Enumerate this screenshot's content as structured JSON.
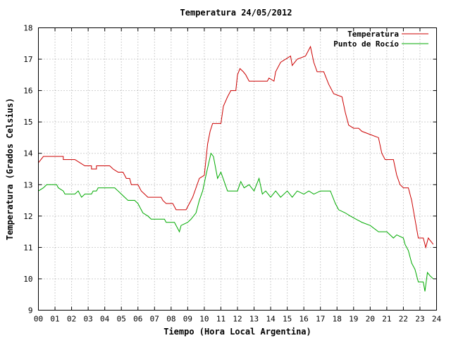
{
  "chart_data": {
    "type": "line",
    "title": "Temperatura 24/05/2012",
    "xlabel": "Tiempo (Hora Local Argentina)",
    "ylabel": "Temperatura (Grados Celsius)",
    "xlim": [
      0,
      24
    ],
    "ylim": [
      9,
      18
    ],
    "x_ticks": [
      "00",
      "01",
      "02",
      "03",
      "04",
      "05",
      "06",
      "07",
      "08",
      "09",
      "10",
      "11",
      "12",
      "13",
      "14",
      "15",
      "16",
      "17",
      "18",
      "19",
      "20",
      "21",
      "22",
      "23",
      "24"
    ],
    "y_ticks": [
      "9",
      "10",
      "11",
      "12",
      "13",
      "14",
      "15",
      "16",
      "17",
      "18"
    ],
    "grid": true,
    "legend_position": "top-right",
    "series": [
      {
        "name": "Temperatura",
        "color": "#cc0000",
        "points": [
          [
            0.0,
            13.7
          ],
          [
            0.15,
            13.8
          ],
          [
            0.3,
            13.9
          ],
          [
            1.5,
            13.9
          ],
          [
            1.5,
            13.8
          ],
          [
            2.2,
            13.8
          ],
          [
            2.5,
            13.7
          ],
          [
            2.8,
            13.6
          ],
          [
            3.2,
            13.6
          ],
          [
            3.2,
            13.5
          ],
          [
            3.5,
            13.5
          ],
          [
            3.5,
            13.6
          ],
          [
            4.3,
            13.6
          ],
          [
            4.5,
            13.5
          ],
          [
            4.8,
            13.4
          ],
          [
            5.1,
            13.4
          ],
          [
            5.3,
            13.2
          ],
          [
            5.5,
            13.2
          ],
          [
            5.6,
            13.0
          ],
          [
            6.0,
            13.0
          ],
          [
            6.2,
            12.8
          ],
          [
            6.4,
            12.7
          ],
          [
            6.6,
            12.6
          ],
          [
            7.4,
            12.6
          ],
          [
            7.5,
            12.5
          ],
          [
            7.7,
            12.4
          ],
          [
            8.1,
            12.4
          ],
          [
            8.2,
            12.3
          ],
          [
            8.3,
            12.2
          ],
          [
            8.9,
            12.2
          ],
          [
            9.1,
            12.4
          ],
          [
            9.3,
            12.6
          ],
          [
            9.5,
            12.9
          ],
          [
            9.7,
            13.2
          ],
          [
            10.0,
            13.3
          ],
          [
            10.1,
            13.8
          ],
          [
            10.2,
            14.3
          ],
          [
            10.35,
            14.7
          ],
          [
            10.5,
            14.95
          ],
          [
            11.0,
            14.95
          ],
          [
            11.15,
            15.5
          ],
          [
            11.4,
            15.8
          ],
          [
            11.6,
            16.0
          ],
          [
            11.9,
            16.0
          ],
          [
            12.0,
            16.5
          ],
          [
            12.15,
            16.7
          ],
          [
            12.35,
            16.6
          ],
          [
            12.5,
            16.5
          ],
          [
            12.7,
            16.3
          ],
          [
            13.8,
            16.3
          ],
          [
            13.9,
            16.4
          ],
          [
            14.2,
            16.3
          ],
          [
            14.3,
            16.6
          ],
          [
            14.6,
            16.9
          ],
          [
            15.2,
            17.1
          ],
          [
            15.3,
            16.8
          ],
          [
            15.6,
            17.0
          ],
          [
            16.1,
            17.1
          ],
          [
            16.4,
            17.4
          ],
          [
            16.6,
            16.9
          ],
          [
            16.8,
            16.6
          ],
          [
            17.2,
            16.6
          ],
          [
            17.5,
            16.2
          ],
          [
            17.8,
            15.9
          ],
          [
            18.3,
            15.8
          ],
          [
            18.5,
            15.3
          ],
          [
            18.7,
            14.9
          ],
          [
            19.0,
            14.8
          ],
          [
            19.3,
            14.8
          ],
          [
            19.5,
            14.7
          ],
          [
            20.0,
            14.6
          ],
          [
            20.5,
            14.5
          ],
          [
            20.7,
            14.0
          ],
          [
            20.9,
            13.8
          ],
          [
            21.4,
            13.8
          ],
          [
            21.6,
            13.3
          ],
          [
            21.8,
            13.0
          ],
          [
            22.0,
            12.9
          ],
          [
            22.3,
            12.9
          ],
          [
            22.5,
            12.5
          ],
          [
            22.8,
            11.6
          ],
          [
            22.9,
            11.3
          ],
          [
            23.2,
            11.3
          ],
          [
            23.35,
            11.0
          ],
          [
            23.5,
            11.3
          ],
          [
            23.65,
            11.2
          ],
          [
            23.8,
            11.1
          ]
        ]
      },
      {
        "name": "Punto de Rocío",
        "color": "#00aa00",
        "points": [
          [
            0.0,
            12.8
          ],
          [
            0.3,
            12.9
          ],
          [
            0.5,
            13.0
          ],
          [
            1.1,
            13.0
          ],
          [
            1.2,
            12.9
          ],
          [
            1.5,
            12.8
          ],
          [
            1.6,
            12.7
          ],
          [
            2.2,
            12.7
          ],
          [
            2.4,
            12.8
          ],
          [
            2.6,
            12.6
          ],
          [
            2.8,
            12.7
          ],
          [
            3.2,
            12.7
          ],
          [
            3.3,
            12.8
          ],
          [
            3.5,
            12.8
          ],
          [
            3.6,
            12.9
          ],
          [
            4.6,
            12.9
          ],
          [
            4.8,
            12.8
          ],
          [
            5.0,
            12.7
          ],
          [
            5.2,
            12.6
          ],
          [
            5.4,
            12.5
          ],
          [
            5.8,
            12.5
          ],
          [
            6.0,
            12.4
          ],
          [
            6.3,
            12.1
          ],
          [
            6.6,
            12.0
          ],
          [
            6.8,
            11.9
          ],
          [
            7.6,
            11.9
          ],
          [
            7.7,
            11.8
          ],
          [
            8.2,
            11.8
          ],
          [
            8.5,
            11.5
          ],
          [
            8.6,
            11.7
          ],
          [
            9.0,
            11.8
          ],
          [
            9.2,
            11.9
          ],
          [
            9.5,
            12.1
          ],
          [
            9.7,
            12.5
          ],
          [
            9.9,
            12.8
          ],
          [
            10.1,
            13.3
          ],
          [
            10.4,
            14.0
          ],
          [
            10.55,
            13.9
          ],
          [
            10.8,
            13.2
          ],
          [
            11.0,
            13.4
          ],
          [
            11.2,
            13.1
          ],
          [
            11.4,
            12.8
          ],
          [
            12.0,
            12.8
          ],
          [
            12.2,
            13.1
          ],
          [
            12.4,
            12.9
          ],
          [
            12.7,
            13.0
          ],
          [
            13.0,
            12.8
          ],
          [
            13.3,
            13.2
          ],
          [
            13.5,
            12.7
          ],
          [
            13.7,
            12.8
          ],
          [
            14.0,
            12.6
          ],
          [
            14.3,
            12.8
          ],
          [
            14.6,
            12.6
          ],
          [
            15.0,
            12.8
          ],
          [
            15.3,
            12.6
          ],
          [
            15.6,
            12.8
          ],
          [
            16.0,
            12.7
          ],
          [
            16.3,
            12.8
          ],
          [
            16.6,
            12.7
          ],
          [
            17.0,
            12.8
          ],
          [
            17.6,
            12.8
          ],
          [
            17.9,
            12.4
          ],
          [
            18.1,
            12.2
          ],
          [
            18.5,
            12.1
          ],
          [
            18.8,
            12.0
          ],
          [
            19.5,
            11.8
          ],
          [
            20.0,
            11.7
          ],
          [
            20.5,
            11.5
          ],
          [
            21.0,
            11.5
          ],
          [
            21.4,
            11.3
          ],
          [
            21.6,
            11.4
          ],
          [
            22.0,
            11.3
          ],
          [
            22.1,
            11.1
          ],
          [
            22.3,
            10.9
          ],
          [
            22.5,
            10.5
          ],
          [
            22.7,
            10.3
          ],
          [
            22.9,
            9.9
          ],
          [
            23.2,
            9.9
          ],
          [
            23.3,
            9.6
          ],
          [
            23.45,
            10.2
          ],
          [
            23.6,
            10.1
          ],
          [
            23.8,
            10.0
          ]
        ]
      }
    ]
  }
}
